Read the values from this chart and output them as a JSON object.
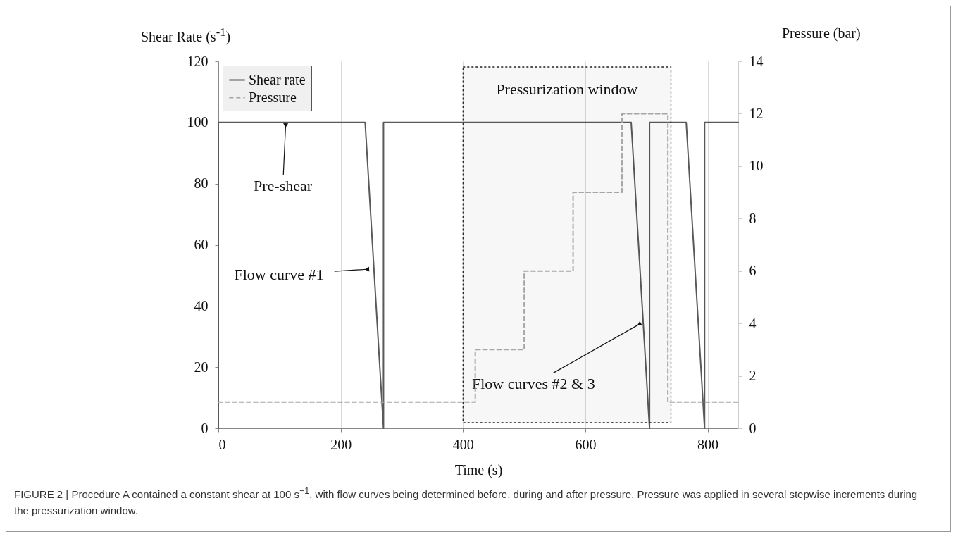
{
  "chart_data": {
    "type": "line",
    "xlabel": "Time (s)",
    "ylabel": "Shear Rate (s$^{-1}$)",
    "y2label": "Pressure (bar)",
    "xlim": [
      0,
      850
    ],
    "xticks": [
      0,
      200,
      400,
      600,
      800
    ],
    "ylim": [
      0,
      120
    ],
    "yticks": [
      0,
      20,
      40,
      60,
      80,
      100,
      120
    ],
    "y2lim": [
      0,
      14
    ],
    "y2ticks": [
      0,
      2,
      4,
      6,
      8,
      10,
      12,
      14
    ],
    "grid": "x",
    "legend": "top left",
    "series": [
      {
        "name": "Shear rate",
        "color": "#595959",
        "line_style": "solid",
        "x": [
          0,
          0,
          240,
          270,
          270,
          675,
          705,
          705,
          765,
          795,
          795,
          850
        ],
        "values": [
          0,
          100,
          100,
          0,
          100,
          100,
          0,
          100,
          100,
          0,
          100,
          100
        ]
      },
      {
        "name": "Pressure",
        "color": "#a6a6a6",
        "line_style": "dashed",
        "axis": "y2",
        "x": [
          0,
          420,
          420,
          500,
          500,
          580,
          580,
          660,
          660,
          735,
          735,
          850
        ],
        "values": [
          1,
          1,
          3,
          3,
          6,
          6,
          9,
          9,
          12,
          12,
          1,
          1
        ]
      }
    ],
    "bands": [
      {
        "axis": "x",
        "from": 400,
        "to": 740,
        "label": "Pressurization window"
      }
    ],
    "annotations": [
      {
        "text": "Pre-shear",
        "x": 110,
        "y": 99
      },
      {
        "text": "Flow curve #1",
        "x": 243,
        "y": 52
      },
      {
        "text": "Flow curves #2 & 3",
        "x": 688,
        "y": 34
      },
      "FIGURE 2 | Procedure A contained a constant shear at 100 s$^{−1}$, with flow curves being determined before, during and after pressure. Pressure was applied in several stepwise increments during the pressurization window."
    ]
  }
}
